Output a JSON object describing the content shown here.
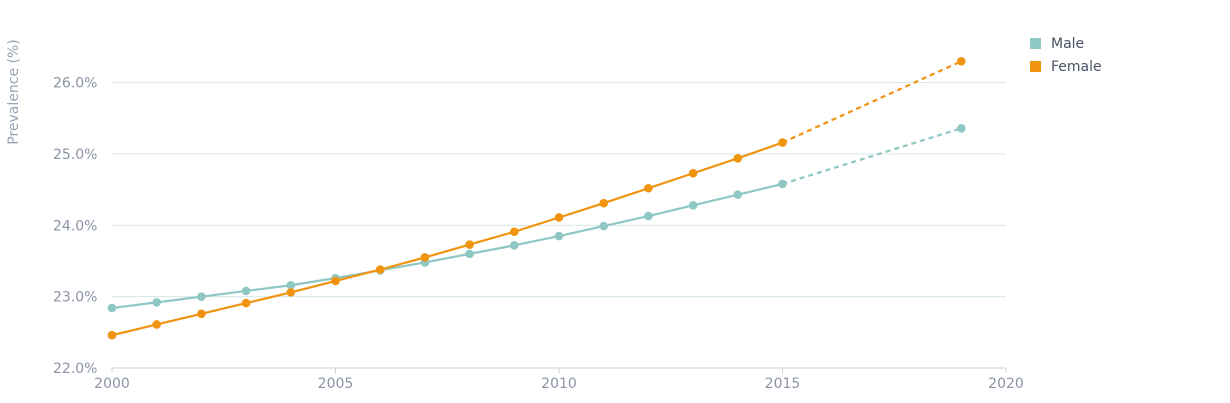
{
  "chart_data": {
    "type": "line",
    "ylabel": "Prevalence (%)",
    "xlim": [
      2000,
      2020
    ],
    "ylim": [
      22.0,
      26.5
    ],
    "x_ticks": [
      "2000",
      "2005",
      "2010",
      "2015",
      "2020"
    ],
    "y_ticks": [
      "22.0%",
      "23.0%",
      "24.0%",
      "25.0%",
      "26.0%"
    ],
    "grid": true,
    "legend_position": "top-right",
    "series": [
      {
        "name": "Male",
        "color": "#8ec7c4",
        "x": [
          2000,
          2001,
          2002,
          2003,
          2004,
          2005,
          2006,
          2007,
          2008,
          2009,
          2010,
          2011,
          2012,
          2013,
          2014,
          2015
        ],
        "values": [
          22.84,
          22.92,
          23.0,
          23.08,
          23.16,
          23.26,
          23.37,
          23.48,
          23.6,
          23.72,
          23.85,
          23.99,
          24.13,
          24.28,
          24.43,
          24.58
        ],
        "projection": {
          "x": [
            2015,
            2019
          ],
          "values": [
            24.58,
            25.36
          ]
        }
      },
      {
        "name": "Female",
        "color": "#f0940f",
        "x": [
          2000,
          2001,
          2002,
          2003,
          2004,
          2005,
          2006,
          2007,
          2008,
          2009,
          2010,
          2011,
          2012,
          2013,
          2014,
          2015
        ],
        "values": [
          22.46,
          22.61,
          22.76,
          22.91,
          23.06,
          23.22,
          23.38,
          23.55,
          23.73,
          23.91,
          24.11,
          24.31,
          24.52,
          24.73,
          24.94,
          25.16
        ],
        "projection": {
          "x": [
            2015,
            2019
          ],
          "values": [
            25.16,
            26.3
          ]
        }
      }
    ]
  }
}
